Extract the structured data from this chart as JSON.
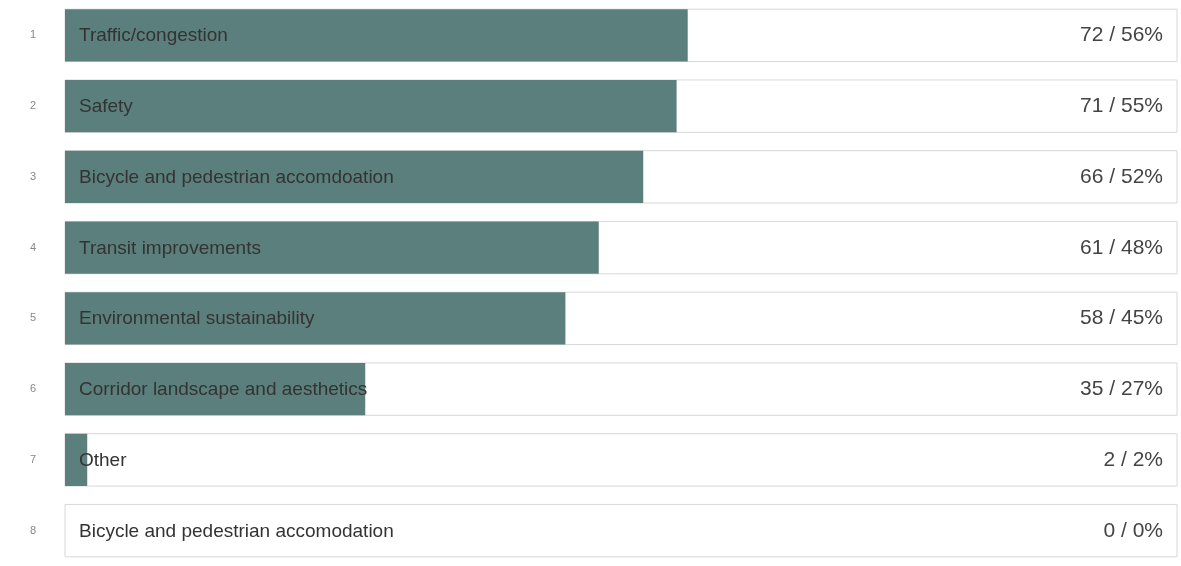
{
  "chart_data": {
    "type": "bar",
    "orientation": "horizontal",
    "categories": [
      "Traffic/congestion",
      "Safety",
      "Bicycle and pedestrian accomdoation",
      "Transit improvements",
      "Environmental sustainability",
      "Corridor landscape and aesthetics",
      "Other",
      "Bicycle and pedestrian accomodation"
    ],
    "values": [
      56,
      55,
      52,
      48,
      45,
      27,
      2,
      0
    ],
    "value_labels": [
      "72 / 56%",
      "71 / 55%",
      "66 / 52%",
      "61 / 48%",
      "58 / 45%",
      "35 / 27%",
      "2 / 2%",
      "0 / 0%"
    ],
    "color": "#5b7f7c",
    "xlim": [
      0,
      100
    ],
    "annotations": [
      "1",
      "2",
      "3",
      "4",
      "5",
      "6",
      "7",
      "8"
    ]
  }
}
